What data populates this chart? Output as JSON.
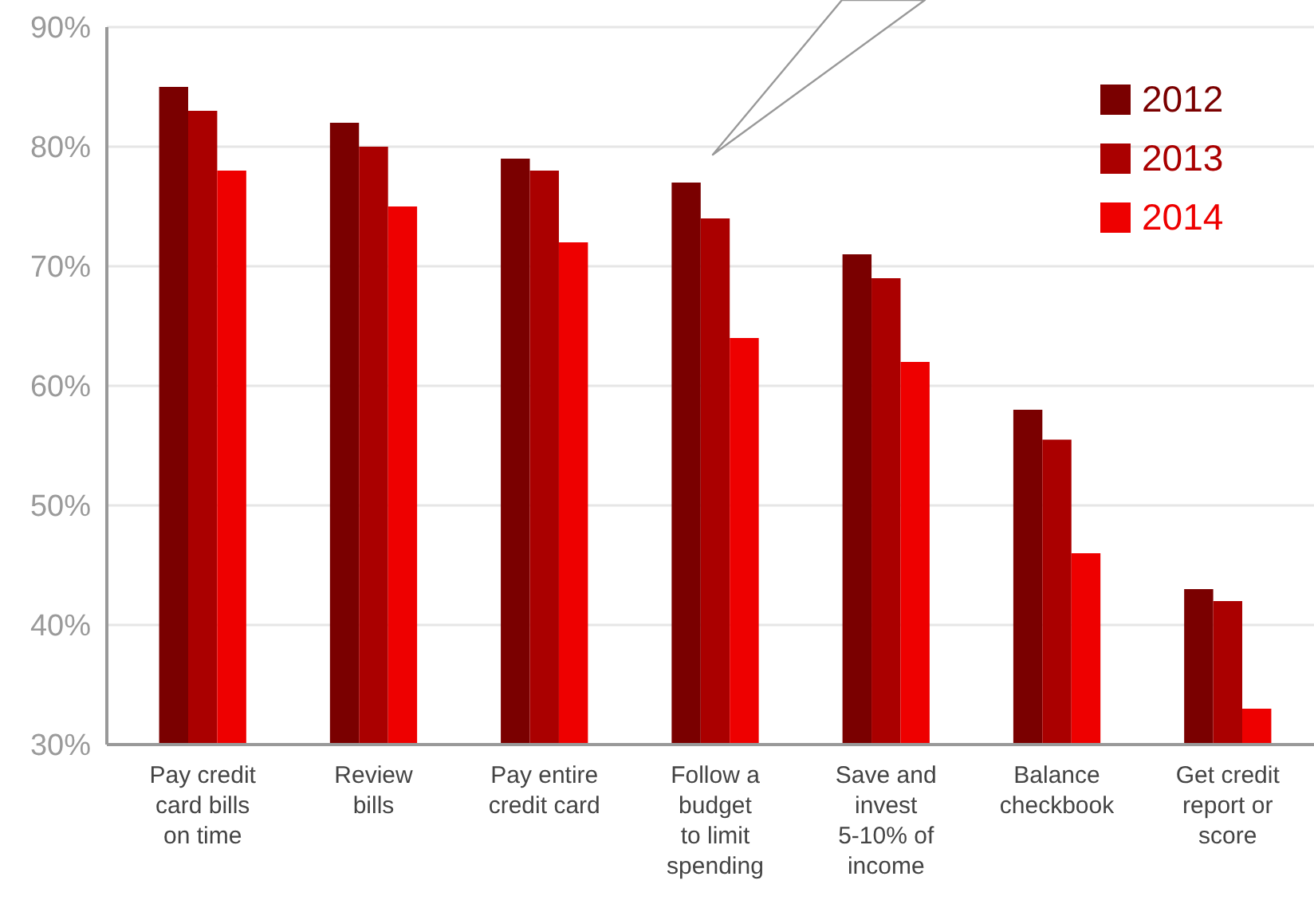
{
  "chart_data": {
    "type": "bar",
    "categories": [
      "Pay credit\ncard bills\non time",
      "Review\nbills",
      "Pay entire\ncredit card",
      "Follow a\nbudget\nto limit\nspending",
      "Save and\ninvest\n5-10% of\nincome",
      "Balance\ncheckbook",
      "Get credit\nreport or\nscore"
    ],
    "series": [
      {
        "name": "2012",
        "color": "#7a0000",
        "values": [
          85,
          82,
          79,
          77,
          71,
          58,
          43
        ]
      },
      {
        "name": "2013",
        "color": "#aa0000",
        "values": [
          83,
          80,
          78,
          74,
          69,
          55.5,
          42
        ]
      },
      {
        "name": "2014",
        "color": "#ee0000",
        "values": [
          78,
          75,
          72,
          64,
          62,
          46,
          33
        ]
      }
    ],
    "ylim": [
      30,
      90
    ],
    "yticks": [
      {
        "value": 30,
        "label": "30%"
      },
      {
        "value": 40,
        "label": "40%"
      },
      {
        "value": 50,
        "label": "50%"
      },
      {
        "value": 60,
        "label": "60%"
      },
      {
        "value": 70,
        "label": "70%"
      },
      {
        "value": 80,
        "label": "80%"
      },
      {
        "value": 90,
        "label": "90%"
      }
    ],
    "grid": "y",
    "legend": "top right"
  }
}
